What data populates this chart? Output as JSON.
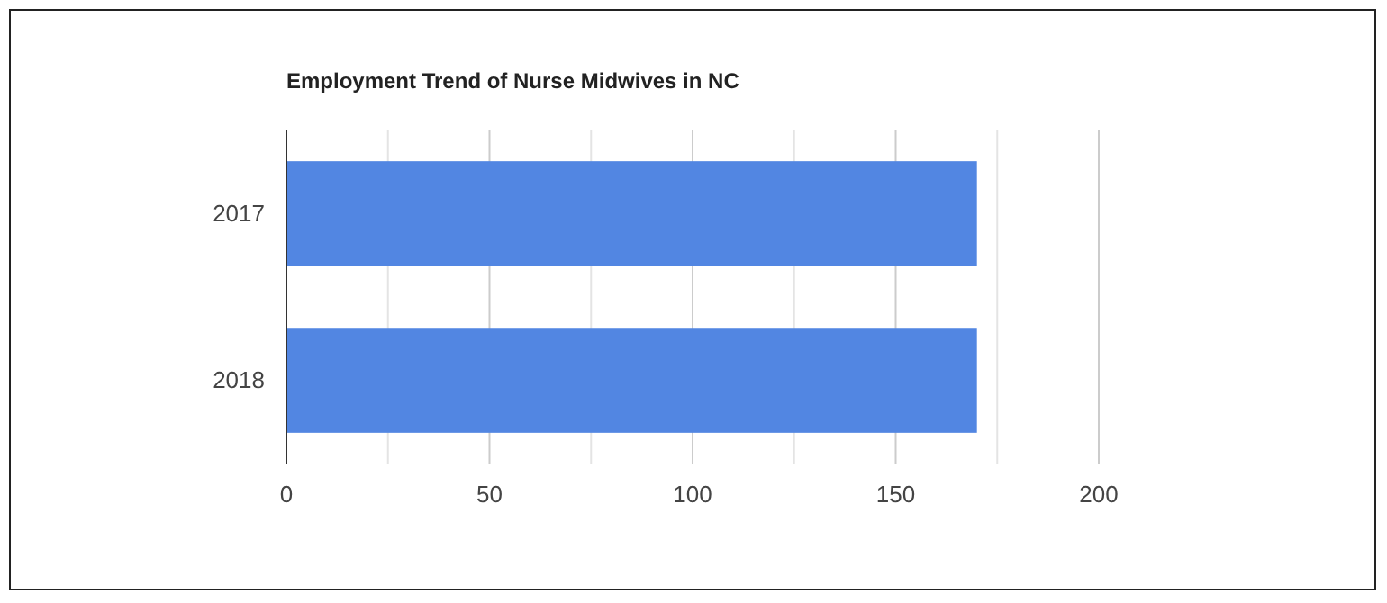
{
  "chart_data": {
    "type": "bar",
    "orientation": "horizontal",
    "title": "Employment Trend of Nurse Midwives in NC",
    "categories": [
      "2017",
      "2018"
    ],
    "series": [
      {
        "color": "#5286e2",
        "values": [
          170,
          170
        ]
      }
    ],
    "xlim": [
      0,
      200
    ],
    "xticks": [
      0,
      {
        "value": 25,
        "label": null
      },
      50,
      {
        "value": 75,
        "label": null
      },
      100,
      {
        "value": 125,
        "label": null
      },
      150,
      {
        "value": 175,
        "label": null
      },
      200
    ],
    "grid": "x"
  }
}
